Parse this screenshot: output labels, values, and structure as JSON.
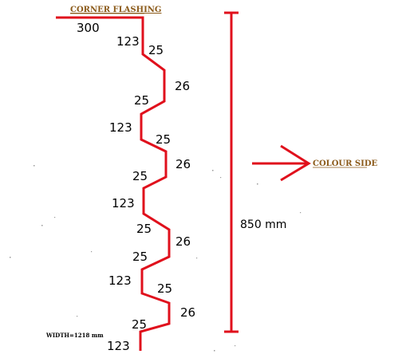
{
  "title": "CORNER FLASHING",
  "width_label": "WIDTH=1218 mm",
  "height_label": "850 mm",
  "colour_side_label": "COLOUR SIDE",
  "colors": {
    "profile": "#e0101c",
    "title": "#8b5a1a",
    "dimension_text": "#000000"
  },
  "dimensions": [
    "300",
    "123",
    "25",
    "26",
    "25",
    "123",
    "25",
    "26",
    "25",
    "123",
    "25",
    "26",
    "25",
    "123",
    "25",
    "26",
    "25",
    "123"
  ]
}
